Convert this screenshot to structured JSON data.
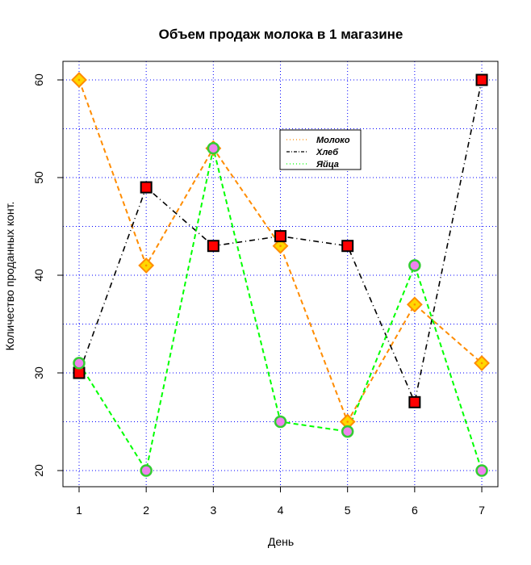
{
  "chart_data": {
    "type": "line",
    "title": "Объем продаж молока в 1 магазине",
    "xlabel": "День",
    "ylabel": "Количество проданных конт.",
    "x": [
      1,
      2,
      3,
      4,
      5,
      6,
      7
    ],
    "xlim": [
      1,
      7
    ],
    "ylim": [
      20,
      60
    ],
    "xticks": [
      1,
      2,
      3,
      4,
      5,
      6,
      7
    ],
    "yticks": [
      20,
      30,
      40,
      50,
      60
    ],
    "grid": true,
    "legend_position": "top-right",
    "series": [
      {
        "name": "Молоко",
        "values": [
          60,
          41,
          53,
          43,
          25,
          37,
          31
        ],
        "line_color": "#ff8c00",
        "marker": "diamond",
        "marker_fill": "#ffd700",
        "marker_border": "#ff8c00",
        "marker_dot": "#ff8c00"
      },
      {
        "name": "Хлеб",
        "values": [
          30,
          49,
          43,
          44,
          43,
          27,
          60
        ],
        "line_color": "#000000",
        "marker": "square",
        "marker_fill": "#ff0000",
        "marker_border": "#000000",
        "marker_dot": "#ff0000"
      },
      {
        "name": "Яйца",
        "values": [
          31,
          20,
          53,
          25,
          24,
          41,
          20
        ],
        "line_color": "#00ff00",
        "marker": "circle",
        "marker_fill": "#ee82ee",
        "marker_border": "#32cd32",
        "marker_dot": "#ee82ee"
      }
    ]
  }
}
